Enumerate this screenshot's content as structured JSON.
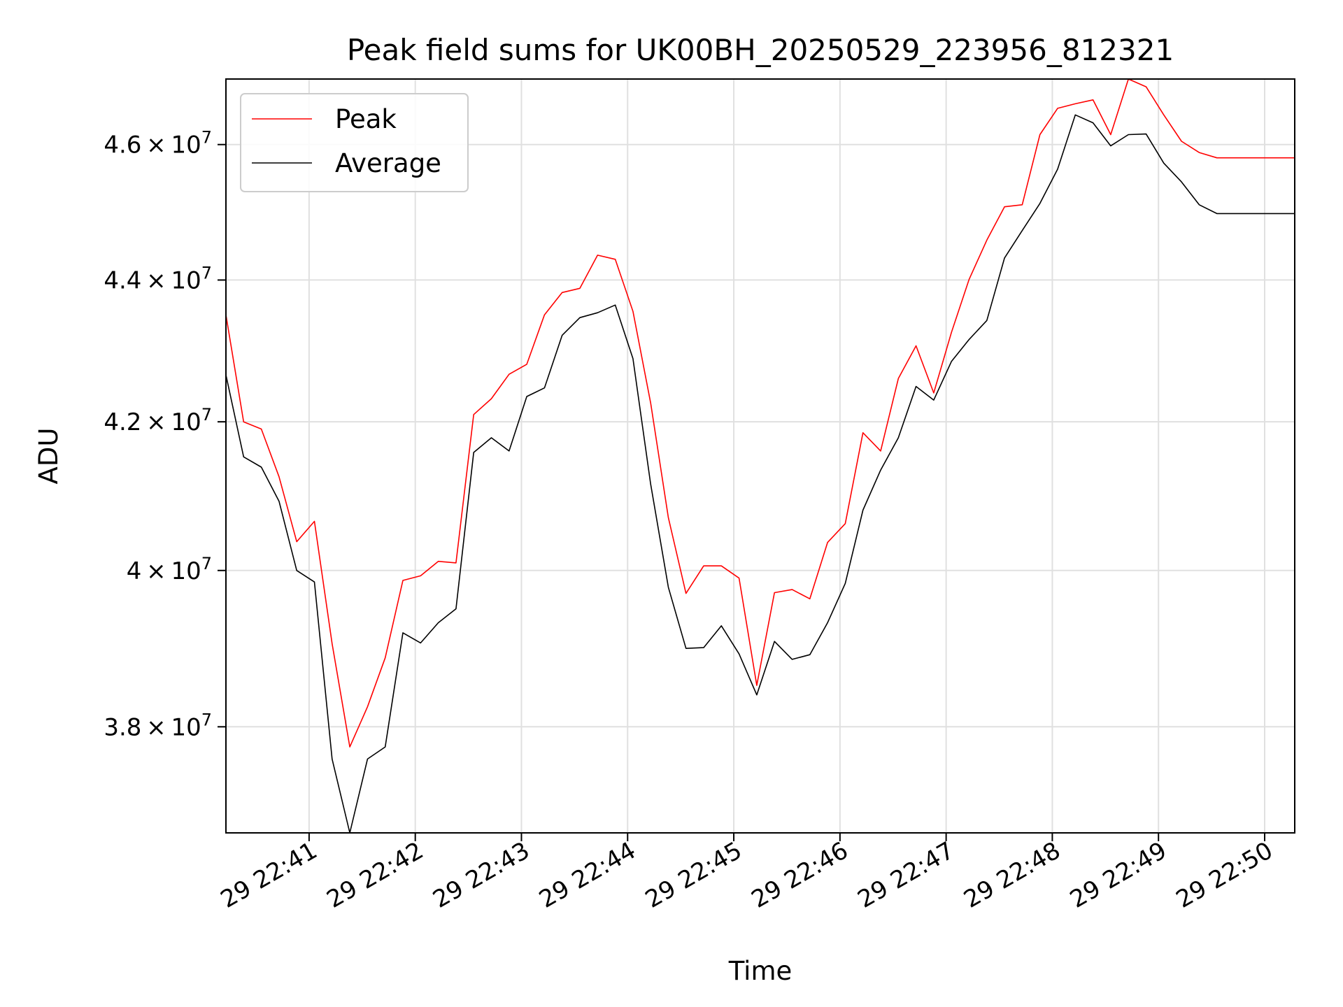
{
  "chart_data": {
    "type": "line",
    "title": "Peak field sums for UK00BH_20250529_223956_812321",
    "xlabel": "Time",
    "ylabel": "ADU",
    "y_scale": "log",
    "ylim": [
      36700000,
      47000000
    ],
    "xlim": [
      "22:40:13",
      "22:50:17"
    ],
    "grid": true,
    "legend_position": "upper-left",
    "x_ticks": [
      {
        "t": "22:41:00",
        "label": "29 22:41"
      },
      {
        "t": "22:42:00",
        "label": "29 22:42"
      },
      {
        "t": "22:43:00",
        "label": "29 22:43"
      },
      {
        "t": "22:44:00",
        "label": "29 22:44"
      },
      {
        "t": "22:45:00",
        "label": "29 22:45"
      },
      {
        "t": "22:46:00",
        "label": "29 22:46"
      },
      {
        "t": "22:47:00",
        "label": "29 22:47"
      },
      {
        "t": "22:48:00",
        "label": "29 22:48"
      },
      {
        "t": "22:49:00",
        "label": "29 22:49"
      },
      {
        "t": "22:50:00",
        "label": "29 22:50"
      }
    ],
    "y_ticks": [
      {
        "value": 38000000,
        "mant": "3.8",
        "exp": "7"
      },
      {
        "value": 40000000,
        "mant": "4",
        "exp": "7"
      },
      {
        "value": 42000000,
        "mant": "4.2",
        "exp": "7"
      },
      {
        "value": 44000000,
        "mant": "4.4",
        "exp": "7"
      },
      {
        "value": 46000000,
        "mant": "4.6",
        "exp": "7"
      }
    ],
    "x": [
      "22:40:13",
      "22:40:23",
      "22:40:33",
      "22:40:43",
      "22:40:53",
      "22:41:03",
      "22:41:13",
      "22:41:23",
      "22:41:33",
      "22:41:43",
      "22:41:53",
      "22:42:03",
      "22:42:13",
      "22:42:23",
      "22:42:33",
      "22:42:43",
      "22:42:53",
      "22:43:03",
      "22:43:13",
      "22:43:23",
      "22:43:33",
      "22:43:43",
      "22:43:53",
      "22:44:03",
      "22:44:13",
      "22:44:23",
      "22:44:33",
      "22:44:43",
      "22:44:53",
      "22:45:03",
      "22:45:13",
      "22:45:23",
      "22:45:33",
      "22:45:43",
      "22:45:53",
      "22:46:03",
      "22:46:13",
      "22:46:23",
      "22:46:33",
      "22:46:43",
      "22:46:53",
      "22:47:03",
      "22:47:13",
      "22:47:23",
      "22:47:33",
      "22:47:43",
      "22:47:53",
      "22:48:03",
      "22:48:13",
      "22:48:23",
      "22:48:33",
      "22:48:43",
      "22:48:53",
      "22:49:03",
      "22:49:13",
      "22:49:23",
      "22:49:33",
      "22:49:43",
      "22:49:53",
      "22:50:03",
      "22:50:17"
    ],
    "series": [
      {
        "name": "Peak",
        "color": "#ff0000",
        "values": [
          43500000,
          42000000,
          41900000,
          41250000,
          40380000,
          40650000,
          39050000,
          37750000,
          38250000,
          38870000,
          39870000,
          39930000,
          40120000,
          40100000,
          42100000,
          42320000,
          42660000,
          42800000,
          43500000,
          43820000,
          43880000,
          44360000,
          44300000,
          43550000,
          42260000,
          40700000,
          39700000,
          40060000,
          40060000,
          39900000,
          38520000,
          39710000,
          39750000,
          39630000,
          40370000,
          40620000,
          41850000,
          41600000,
          42600000,
          43060000,
          42400000,
          43250000,
          44010000,
          44580000,
          45070000,
          45100000,
          46150000,
          46550000,
          46620000,
          46680000,
          46150000,
          47000000,
          46880000,
          46450000,
          46050000,
          45880000,
          45800000,
          45800000,
          45800000,
          45800000,
          45800000
        ]
      },
      {
        "name": "Average",
        "color": "#000000",
        "values": [
          42650000,
          41520000,
          41380000,
          40920000,
          40000000,
          39850000,
          37600000,
          36700000,
          37600000,
          37750000,
          39190000,
          39060000,
          39320000,
          39500000,
          41580000,
          41780000,
          41600000,
          42350000,
          42470000,
          43210000,
          43460000,
          43530000,
          43640000,
          42880000,
          41150000,
          39780000,
          38990000,
          39000000,
          39280000,
          38920000,
          38400000,
          39080000,
          38850000,
          38910000,
          39320000,
          39830000,
          40800000,
          41340000,
          41780000,
          42490000,
          42300000,
          42840000,
          43150000,
          43420000,
          44320000,
          44720000,
          45120000,
          45630000,
          46450000,
          46330000,
          45980000,
          46150000,
          46160000,
          45720000,
          45440000,
          45100000,
          44970000,
          44970000,
          44970000,
          44970000,
          44970000
        ]
      }
    ]
  }
}
